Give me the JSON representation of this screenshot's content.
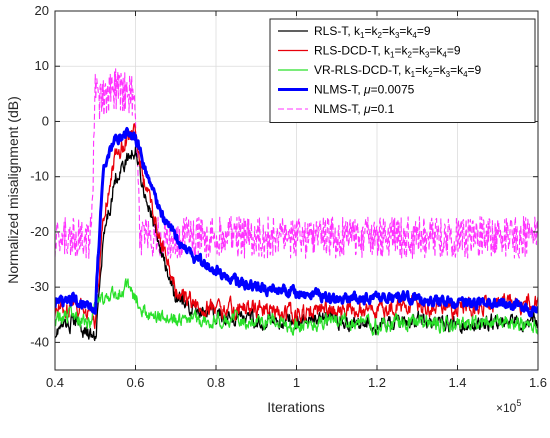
{
  "chart_data": {
    "type": "line",
    "xlabel": "Iterations",
    "ylabel": "Normalized misalignment (dB)",
    "x_exponent_label": "×10",
    "x_exponent_power": "5",
    "xlim": [
      0.4,
      1.6
    ],
    "ylim": [
      -45,
      20
    ],
    "x_ticks": [
      "0.4",
      "0.6",
      "0.8",
      "1",
      "1.2",
      "1.4",
      "1.6"
    ],
    "y_ticks": [
      "-40",
      "-30",
      "-20",
      "-10",
      "0",
      "10",
      "20"
    ],
    "grid": true,
    "legend_position": "top-right",
    "series": [
      {
        "name": "RLS-T, k1=k2=k3=k4=9",
        "legend_parts": [
          [
            "RLS-T, k",
            ""
          ],
          [
            "1",
            "sub"
          ],
          [
            "=k",
            ""
          ],
          [
            "2",
            "sub"
          ],
          [
            "=k",
            ""
          ],
          [
            "3",
            "sub"
          ],
          [
            "=k",
            ""
          ],
          [
            "4",
            "sub"
          ],
          [
            "=9",
            ""
          ]
        ],
        "color": "#000000",
        "width": 1.3,
        "dash": "",
        "x": [
          0.4,
          0.45,
          0.49,
          0.5,
          0.52,
          0.55,
          0.58,
          0.6,
          0.62,
          0.65,
          0.68,
          0.7,
          0.75,
          0.8,
          0.9,
          1.0,
          1.1,
          1.2,
          1.3,
          1.4,
          1.5,
          1.6
        ],
        "y": [
          -38,
          -36,
          -39,
          -40,
          -22,
          -10,
          -7,
          -5,
          -12,
          -20,
          -28,
          -32,
          -34,
          -35,
          -36,
          -36,
          -36,
          -37,
          -36,
          -37,
          -36,
          -36
        ],
        "noise": 1.6
      },
      {
        "name": "RLS-DCD-T, k1=k2=k3=k4=9",
        "legend_parts": [
          [
            "RLS-DCD-T, k",
            ""
          ],
          [
            "1",
            "sub"
          ],
          [
            "=k",
            ""
          ],
          [
            "2",
            "sub"
          ],
          [
            "=k",
            ""
          ],
          [
            "3",
            "sub"
          ],
          [
            "=k",
            ""
          ],
          [
            "4",
            "sub"
          ],
          [
            "=9",
            ""
          ]
        ],
        "color": "#e8000b",
        "width": 1.3,
        "dash": "",
        "x": [
          0.4,
          0.45,
          0.49,
          0.5,
          0.52,
          0.55,
          0.58,
          0.6,
          0.62,
          0.65,
          0.68,
          0.7,
          0.75,
          0.8,
          0.9,
          1.0,
          1.1,
          1.2,
          1.3,
          1.4,
          1.5,
          1.6
        ],
        "y": [
          -34,
          -33,
          -35,
          -36,
          -18,
          -6,
          -3,
          -2,
          -10,
          -18,
          -26,
          -30,
          -33,
          -34,
          -34,
          -35,
          -34,
          -34,
          -33,
          -34,
          -33,
          -33
        ],
        "noise": 1.8
      },
      {
        "name": "VR-RLS-DCD-T, k1=k2=k3=k4=9",
        "legend_parts": [
          [
            "VR-RLS-DCD-T, k",
            ""
          ],
          [
            "1",
            "sub"
          ],
          [
            "=k",
            ""
          ],
          [
            "2",
            "sub"
          ],
          [
            "=k",
            ""
          ],
          [
            "3",
            "sub"
          ],
          [
            "=k",
            ""
          ],
          [
            "4",
            "sub"
          ],
          [
            "=9",
            ""
          ]
        ],
        "color": "#2be02b",
        "width": 1.3,
        "dash": "",
        "x": [
          0.4,
          0.45,
          0.49,
          0.5,
          0.53,
          0.56,
          0.58,
          0.6,
          0.62,
          0.65,
          0.7,
          0.75,
          0.8,
          0.9,
          1.0,
          1.1,
          1.2,
          1.3,
          1.4,
          1.5,
          1.6
        ],
        "y": [
          -36,
          -35,
          -37,
          -33,
          -32,
          -31,
          -30,
          -32,
          -34,
          -35,
          -36,
          -36,
          -36,
          -36,
          -37,
          -36,
          -37,
          -36,
          -37,
          -36,
          -37
        ],
        "noise": 1.5
      },
      {
        "name": "NLMS-T, μ=0.0075",
        "legend_parts": [
          [
            "NLMS-T, ",
            ""
          ],
          [
            "μ",
            "italic"
          ],
          [
            "=0.0075",
            ""
          ]
        ],
        "color": "#0000ff",
        "width": 3,
        "dash": "",
        "x": [
          0.4,
          0.45,
          0.49,
          0.5,
          0.52,
          0.55,
          0.58,
          0.6,
          0.63,
          0.66,
          0.7,
          0.75,
          0.8,
          0.85,
          0.9,
          1.0,
          1.1,
          1.2,
          1.3,
          1.4,
          1.5,
          1.6
        ],
        "y": [
          -33,
          -32,
          -34,
          -34,
          -8,
          -3,
          -2,
          -3,
          -10,
          -16,
          -21,
          -25,
          -27,
          -29,
          -30,
          -31,
          -32,
          -32,
          -32,
          -33,
          -33,
          -34
        ],
        "noise": 1.1
      },
      {
        "name": "NLMS-T, μ=0.1",
        "legend_parts": [
          [
            "NLMS-T, ",
            ""
          ],
          [
            "μ",
            "italic"
          ],
          [
            "=0.1",
            ""
          ]
        ],
        "color": "#ff33ff",
        "width": 1.1,
        "dash": "6,3",
        "x": [
          0.4,
          0.45,
          0.49,
          0.5,
          0.51,
          0.55,
          0.59,
          0.6,
          0.61,
          0.62,
          0.7,
          0.8,
          0.9,
          1.0,
          1.1,
          1.2,
          1.3,
          1.4,
          1.5,
          1.6
        ],
        "y": [
          -21,
          -21,
          -21,
          5,
          4,
          6,
          5,
          2,
          -20,
          -21,
          -21,
          -21,
          -21,
          -21,
          -21,
          -21,
          -21,
          -21,
          -21,
          -21
        ],
        "noise": 3.8
      }
    ]
  }
}
